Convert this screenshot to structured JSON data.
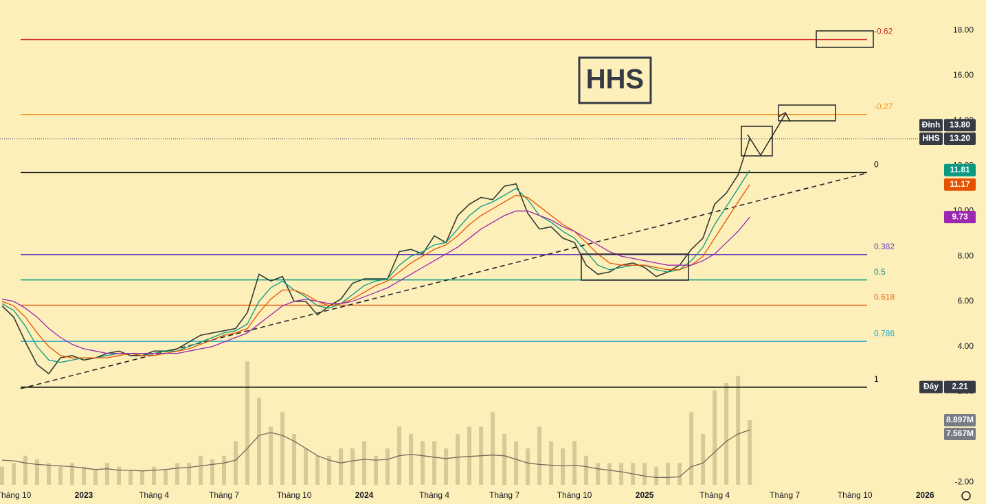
{
  "chart_data": {
    "type": "line",
    "title": "HHS",
    "ylim": [
      -2.97,
      19.34
    ],
    "yticks": [
      {
        "value": 18,
        "label": "18.00"
      },
      {
        "value": 16,
        "label": "16.00"
      },
      {
        "value": 14,
        "label": "14.00"
      },
      {
        "value": 12,
        "label": "12.00"
      },
      {
        "value": 10,
        "label": "10.00"
      },
      {
        "value": 8,
        "label": "8.00"
      },
      {
        "value": 6,
        "label": "6.00"
      },
      {
        "value": 4,
        "label": "4.00"
      },
      {
        "value": 2,
        "label": "2.00"
      },
      {
        "value": -2,
        "label": "-2.00"
      }
    ],
    "xlim": [
      -0.176,
      80.4
    ],
    "xticks": [
      {
        "value": 1,
        "label": "Tháng 10"
      },
      {
        "value": 7,
        "label": "2023"
      },
      {
        "value": 13,
        "label": "Tháng 4"
      },
      {
        "value": 19,
        "label": "Tháng 7"
      },
      {
        "value": 25,
        "label": "Tháng 10"
      },
      {
        "value": 31,
        "label": "2024"
      },
      {
        "value": 37,
        "label": "Tháng 4"
      },
      {
        "value": 43,
        "label": "Tháng 7"
      },
      {
        "value": 49,
        "label": "Tháng 10"
      },
      {
        "value": 55,
        "label": "2025"
      },
      {
        "value": 61,
        "label": "Tháng 4"
      },
      {
        "value": 67,
        "label": "Tháng 7"
      },
      {
        "value": 73,
        "label": "Tháng 10"
      },
      {
        "value": 79,
        "label": "2026"
      }
    ],
    "series": [
      {
        "color": "#2e3b33",
        "values": [
          5.8,
          5.3,
          4.2,
          3.2,
          2.8,
          3.5,
          3.6,
          3.4,
          3.5,
          3.7,
          3.8,
          3.6,
          3.6,
          3.8,
          3.8,
          3.9,
          4.2,
          4.5,
          4.6,
          4.7,
          4.8,
          5.5,
          7.2,
          6.9,
          7.1,
          6.0,
          6.0,
          5.4,
          5.8,
          6.1,
          6.8,
          7.0,
          7.0,
          7.0,
          8.2,
          8.3,
          8.1,
          8.9,
          8.6,
          9.8,
          10.3,
          10.6,
          10.5,
          11.1,
          11.2,
          9.9,
          9.2,
          9.3,
          8.8,
          8.6,
          7.6,
          7.2,
          7.3,
          7.6,
          7.7,
          7.5,
          7.1,
          7.3,
          7.6,
          8.3,
          8.8,
          10.3,
          10.8,
          11.6,
          13.2
        ]
      },
      {
        "color": "#089981",
        "values": [
          5.9,
          5.6,
          4.9,
          4.0,
          3.4,
          3.3,
          3.4,
          3.5,
          3.5,
          3.6,
          3.7,
          3.7,
          3.6,
          3.7,
          3.8,
          3.8,
          4.0,
          4.2,
          4.4,
          4.6,
          4.7,
          5.0,
          6.0,
          6.6,
          6.9,
          6.5,
          6.2,
          5.8,
          5.7,
          5.9,
          6.3,
          6.7,
          6.9,
          7.0,
          7.6,
          8.0,
          8.2,
          8.5,
          8.6,
          9.2,
          9.8,
          10.2,
          10.4,
          10.7,
          11.0,
          10.5,
          9.8,
          9.5,
          9.1,
          8.8,
          8.2,
          7.6,
          7.4,
          7.5,
          7.6,
          7.6,
          7.4,
          7.3,
          7.4,
          7.8,
          8.4,
          9.4,
          10.2,
          11.0,
          11.81
        ]
      },
      {
        "color": "#e65100",
        "values": [
          6.0,
          5.8,
          5.3,
          4.6,
          4.0,
          3.6,
          3.5,
          3.5,
          3.5,
          3.5,
          3.6,
          3.7,
          3.6,
          3.6,
          3.7,
          3.8,
          3.9,
          4.1,
          4.3,
          4.5,
          4.6,
          4.8,
          5.5,
          6.1,
          6.5,
          6.5,
          6.3,
          6.0,
          5.8,
          5.9,
          6.1,
          6.4,
          6.7,
          6.9,
          7.3,
          7.7,
          8.0,
          8.3,
          8.5,
          8.9,
          9.4,
          9.8,
          10.1,
          10.4,
          10.7,
          10.6,
          10.2,
          9.8,
          9.4,
          9.1,
          8.6,
          8.1,
          7.7,
          7.6,
          7.6,
          7.6,
          7.5,
          7.4,
          7.4,
          7.6,
          8.0,
          8.8,
          9.6,
          10.4,
          11.17
        ]
      },
      {
        "color": "#9c27b0",
        "values": [
          6.1,
          6.0,
          5.7,
          5.3,
          4.8,
          4.4,
          4.1,
          3.9,
          3.8,
          3.7,
          3.7,
          3.7,
          3.7,
          3.7,
          3.7,
          3.7,
          3.8,
          3.9,
          4.0,
          4.2,
          4.4,
          4.6,
          5.0,
          5.4,
          5.8,
          6.0,
          6.1,
          6.0,
          5.9,
          5.9,
          6.0,
          6.2,
          6.4,
          6.6,
          6.9,
          7.2,
          7.5,
          7.8,
          8.1,
          8.4,
          8.8,
          9.2,
          9.5,
          9.8,
          10.0,
          10.0,
          9.8,
          9.6,
          9.3,
          9.1,
          8.8,
          8.5,
          8.2,
          8.0,
          7.9,
          7.8,
          7.7,
          7.6,
          7.6,
          7.6,
          7.8,
          8.1,
          8.6,
          9.1,
          9.73
        ]
      }
    ],
    "volume": {
      "color": "#c9bd8c",
      "vlim": [
        0,
        20
      ],
      "values": [
        2.5,
        3,
        4,
        3.5,
        3,
        2.5,
        3,
        2.5,
        2,
        3,
        2.5,
        2,
        2,
        2.5,
        2,
        3,
        3,
        4,
        3.5,
        4,
        6,
        17,
        12,
        8,
        10,
        7,
        5,
        4,
        4,
        5,
        5,
        6,
        4,
        5,
        8,
        7,
        6,
        6,
        5,
        7,
        8,
        8,
        10,
        7,
        6,
        5,
        8,
        6,
        5,
        6,
        4,
        3,
        3,
        3,
        3,
        3,
        2.5,
        3,
        3,
        10,
        7,
        13,
        14,
        15,
        8.897
      ]
    },
    "volume_ma": {
      "color": "#6f6a5a",
      "values": [
        3.4,
        3.3,
        3.0,
        2.8,
        2.7,
        2.6,
        2.5,
        2.3,
        2.1,
        2.2,
        2.0,
        2.0,
        1.9,
        2.0,
        2.1,
        2.3,
        2.4,
        2.6,
        2.8,
        3.0,
        3.4,
        5.0,
        6.8,
        7.2,
        6.8,
        6.0,
        5.0,
        4.0,
        3.4,
        3.0,
        3.3,
        3.5,
        3.4,
        3.5,
        4.0,
        4.2,
        4.0,
        3.8,
        3.6,
        3.8,
        3.9,
        4.0,
        4.1,
        4.0,
        3.5,
        3.0,
        2.8,
        2.7,
        2.6,
        2.7,
        2.5,
        2.2,
        2.0,
        1.8,
        1.5,
        1.2,
        1.0,
        1.0,
        1.1,
        2.5,
        3.0,
        4.5,
        6.0,
        7.0,
        7.567
      ]
    },
    "fib_levels": [
      {
        "label": "-0.62",
        "value": 17.59,
        "color": "#d32f2f"
      },
      {
        "label": "-0.27",
        "value": 14.27,
        "color": "#f7931e"
      },
      {
        "label": "0",
        "value": 11.7,
        "color": "#000000"
      },
      {
        "label": "0.382",
        "value": 8.07,
        "color": "#673ab7"
      },
      {
        "label": "0.5",
        "value": 6.95,
        "color": "#089981"
      },
      {
        "label": "0.618",
        "value": 5.83,
        "color": "#e8661a"
      },
      {
        "label": "0.786",
        "value": 4.23,
        "color": "#26a6c9"
      },
      {
        "label": "1",
        "value": 2.2,
        "color": "#000000"
      }
    ],
    "price_labels": [
      {
        "name": "Đỉnh",
        "value": 13.8,
        "label": "13.80",
        "color": "#363a45"
      },
      {
        "name": "HHS",
        "value": 13.2,
        "label": "13.20",
        "color": "#363a45"
      },
      {
        "value": 11.81,
        "color": "#089981"
      },
      {
        "value": 11.17,
        "color": "#e65100"
      },
      {
        "value": 9.73,
        "color": "#9c27b0"
      },
      {
        "name": "Đáy",
        "value": 2.21,
        "label": "2.21",
        "color": "#363a45"
      }
    ],
    "volume_labels": [
      {
        "value": 8.897,
        "label": "8.897M",
        "color": "#787b86"
      },
      {
        "value": 7.567,
        "label": "7.567M",
        "color": "#787b86"
      }
    ]
  }
}
